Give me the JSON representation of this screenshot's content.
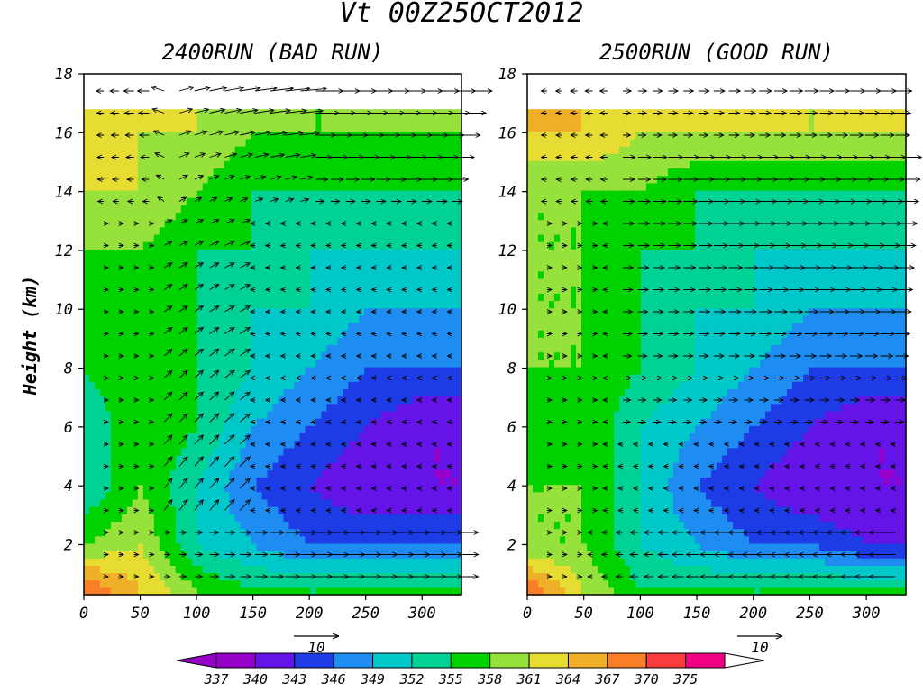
{
  "figure": {
    "title": "Vt 00Z25OCT2012"
  },
  "chart_data": [
    {
      "type": "heatmap",
      "title": "2400RUN (BAD RUN)",
      "xlabel": "",
      "ylabel": "Height (km)",
      "xlim": [
        0,
        335
      ],
      "ylim": [
        0.3,
        18
      ],
      "xticks": [
        "0",
        "50",
        "100",
        "150",
        "200",
        "250",
        "300"
      ],
      "yticks": [
        "2",
        "4",
        "6",
        "8",
        "10",
        "12",
        "14",
        "16",
        "18"
      ],
      "vector_reference": {
        "label": "10",
        "value": 10
      },
      "field_samples": {
        "x": [
          0,
          50,
          100,
          150,
          200,
          250,
          300,
          335
        ],
        "y": [
          0.5,
          2,
          4,
          6,
          8,
          10,
          12,
          14,
          16
        ],
        "values": [
          [
            370,
            364,
            358,
            355,
            355,
            355,
            355,
            355
          ],
          [
            358,
            361,
            352,
            349,
            346,
            346,
            346,
            346
          ],
          [
            352,
            358,
            352,
            346,
            343,
            340,
            340,
            340
          ],
          [
            352,
            358,
            355,
            349,
            346,
            343,
            340,
            340
          ],
          [
            355,
            358,
            355,
            352,
            349,
            346,
            346,
            346
          ],
          [
            355,
            358,
            355,
            352,
            352,
            349,
            349,
            349
          ],
          [
            358,
            358,
            355,
            355,
            352,
            352,
            352,
            352
          ],
          [
            361,
            361,
            358,
            355,
            355,
            355,
            355,
            355
          ],
          [
            364,
            361,
            361,
            358,
            358,
            358,
            358,
            358
          ]
        ]
      }
    },
    {
      "type": "heatmap",
      "title": "2500RUN (GOOD RUN)",
      "xlabel": "",
      "ylabel": "",
      "xlim": [
        0,
        335
      ],
      "ylim": [
        0.3,
        18
      ],
      "xticks": [
        "0",
        "50",
        "100",
        "150",
        "200",
        "250",
        "300"
      ],
      "yticks": [
        "2",
        "4",
        "6",
        "8",
        "10",
        "12",
        "14",
        "16",
        "18"
      ],
      "vector_reference": {
        "label": "10",
        "value": 10
      },
      "field_samples": {
        "x": [
          0,
          50,
          100,
          150,
          200,
          250,
          300,
          335
        ],
        "y": [
          0.5,
          2,
          4,
          6,
          8,
          10,
          12,
          14,
          16
        ],
        "values": [
          [
            370,
            361,
            355,
            355,
            355,
            355,
            355,
            355
          ],
          [
            358,
            358,
            352,
            349,
            346,
            346,
            343,
            343
          ],
          [
            358,
            358,
            352,
            346,
            343,
            340,
            340,
            340
          ],
          [
            355,
            358,
            352,
            349,
            346,
            343,
            340,
            340
          ],
          [
            358,
            358,
            355,
            352,
            349,
            346,
            346,
            346
          ],
          [
            358,
            358,
            355,
            352,
            352,
            349,
            349,
            349
          ],
          [
            358,
            358,
            355,
            355,
            352,
            352,
            352,
            352
          ],
          [
            358,
            358,
            358,
            355,
            355,
            355,
            355,
            355
          ],
          [
            364,
            364,
            361,
            361,
            361,
            361,
            361,
            361
          ]
        ]
      }
    }
  ],
  "colorbar": {
    "labels": [
      "337",
      "340",
      "343",
      "346",
      "349",
      "352",
      "355",
      "358",
      "361",
      "364",
      "367",
      "370",
      "375"
    ],
    "colors": [
      "#9600c8",
      "#6414e6",
      "#1e3ce6",
      "#1e8cf0",
      "#00c8c8",
      "#00d296",
      "#00d200",
      "#96e13c",
      "#e6dc32",
      "#f0af28",
      "#fa7d28",
      "#fa3c3c",
      "#f00082"
    ]
  }
}
